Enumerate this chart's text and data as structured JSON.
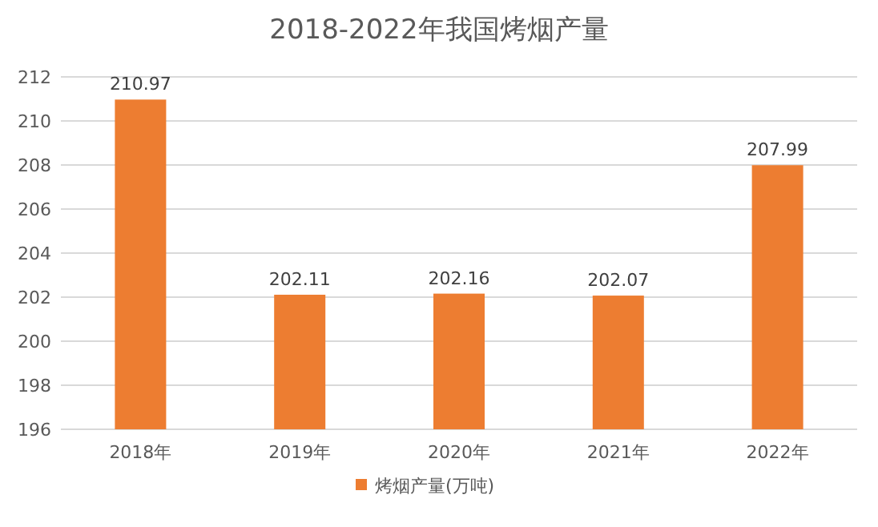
{
  "chart_data": {
    "type": "bar",
    "title": "2018-2022年我国烤烟产量",
    "categories": [
      "2018年",
      "2019年",
      "2020年",
      "2021年",
      "2022年"
    ],
    "series": [
      {
        "name": "烤烟产量(万吨)",
        "color": "#ed7d31",
        "values": [
          210.97,
          202.11,
          202.16,
          202.07,
          207.99
        ]
      }
    ],
    "ylim": [
      196,
      212
    ],
    "yticks": [
      196,
      198,
      200,
      202,
      204,
      206,
      208,
      210,
      212
    ],
    "grid": "y",
    "data_labels": true,
    "legend": "bottom"
  }
}
